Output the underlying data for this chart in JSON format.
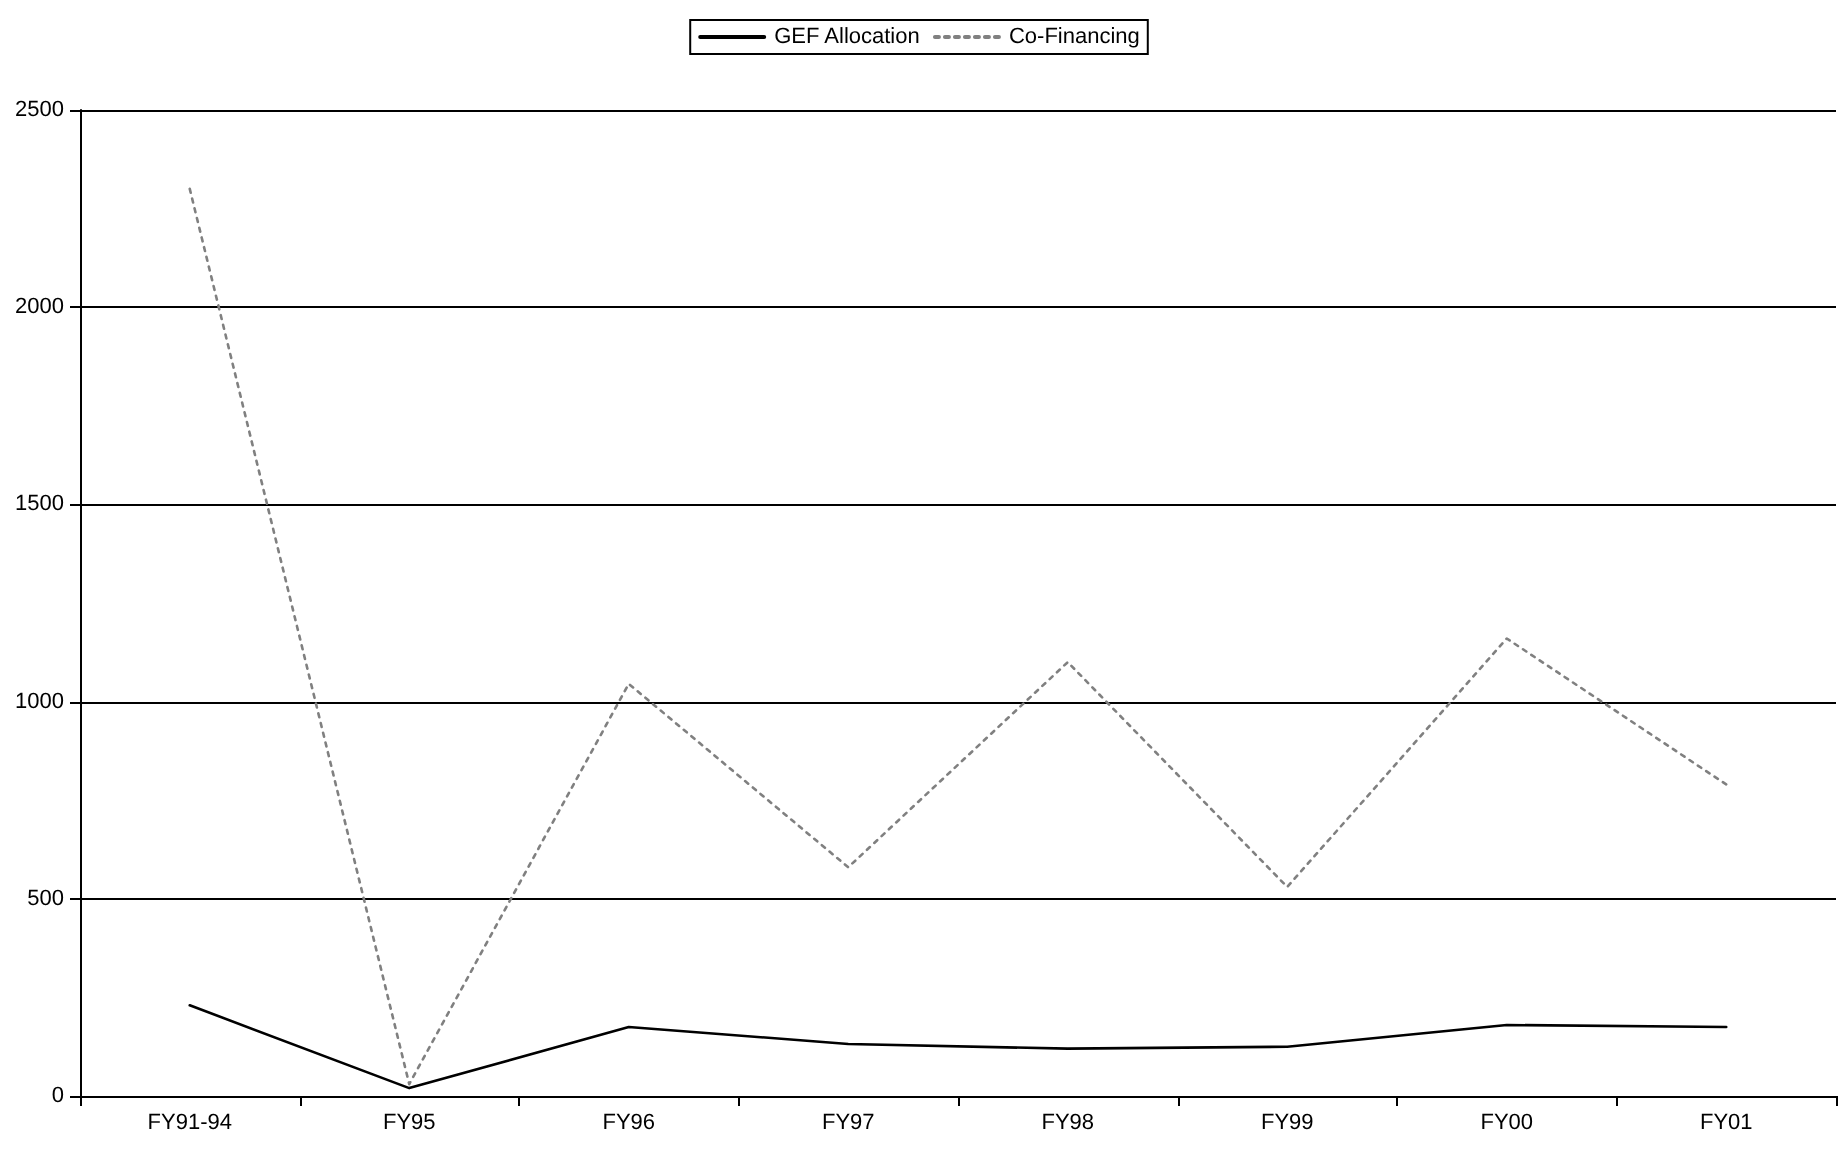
{
  "chart_data": {
    "type": "line",
    "categories": [
      "FY91-94",
      "FY95",
      "FY96",
      "FY97",
      "FY98",
      "FY99",
      "FY00",
      "FY01"
    ],
    "series": [
      {
        "name": "GEF Allocation",
        "color": "#000000",
        "line_style": "solid",
        "values": [
          230,
          20,
          175,
          132,
          120,
          125,
          180,
          175
        ]
      },
      {
        "name": "Co-Financing",
        "color": "#808080",
        "line_style": "dotted",
        "values": [
          2300,
          30,
          1045,
          580,
          1100,
          530,
          1160,
          790
        ]
      }
    ],
    "ylim": [
      0,
      2500
    ],
    "yticks": [
      0,
      500,
      1000,
      1500,
      2000,
      2500
    ],
    "grid": "y",
    "legend": "top",
    "marker": "none"
  }
}
